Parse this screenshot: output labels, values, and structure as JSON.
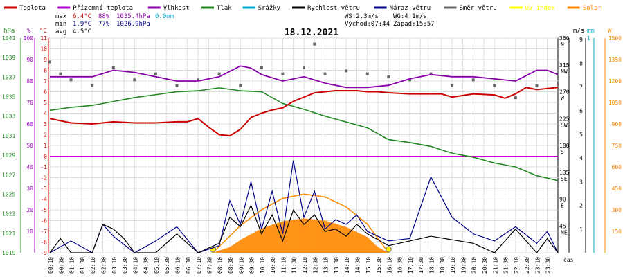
{
  "chart_data": {
    "type": "line",
    "title": "18.12.2021",
    "legend": [
      {
        "name": "Teplota",
        "color": "#cc0000"
      },
      {
        "name": "Přízemní teplota",
        "color": "#aa00cc"
      },
      {
        "name": "Vlhkost",
        "color": "#8800aa"
      },
      {
        "name": "Tlak",
        "color": "#228822"
      },
      {
        "name": "Srážky",
        "color": "#00aacc"
      },
      {
        "name": "Rychlost větru",
        "color": "#000000"
      },
      {
        "name": "Náraz větru",
        "color": "#000088"
      },
      {
        "name": "Směr větru",
        "color": "#666666"
      },
      {
        "name": "UV index",
        "color": "#ffff00"
      },
      {
        "name": "Solar",
        "color": "#ff8800"
      }
    ],
    "stats": {
      "max": {
        "label": "max",
        "temp": "6.4°C",
        "hum": "88%",
        "press": "1035.4hPa",
        "rain": "0.0mm"
      },
      "min": {
        "label": "min",
        "temp": "1.9°C",
        "hum": "77%",
        "press": "1026.9hPa"
      },
      "avg": {
        "label": "avg",
        "temp": "4.5°C"
      }
    },
    "info": {
      "ws": "WS:2.3m/s",
      "wg": "WG:4.1m/s",
      "sunrise": "Východ:07:44",
      "sunset": "Západ:15:57"
    },
    "axes": {
      "hPa": {
        "unit": "hPa",
        "ticks": [
          "1041",
          "1039",
          "1037",
          "1035",
          "1033",
          "1031",
          "1029",
          "1027",
          "1025",
          "1023",
          "1021",
          "1019"
        ]
      },
      "pct": {
        "unit": "%",
        "ticks": [
          "100",
          "90",
          "80",
          "70",
          "60",
          "50",
          "40",
          "30",
          "20",
          "10"
        ]
      },
      "degC": {
        "unit": "°C",
        "ticks": [
          "11",
          "10",
          "9",
          "8",
          "7",
          "6",
          "5",
          "4",
          "3",
          "2",
          "1",
          "0",
          "-1",
          "-2",
          "-3",
          "-4",
          "-5",
          "-6",
          "-7",
          "-8",
          "-9"
        ]
      },
      "dir": {
        "ticks": [
          {
            "deg": "360",
            "lbl": "N"
          },
          {
            "deg": "315",
            "lbl": "NW"
          },
          {
            "deg": "270",
            "lbl": "W"
          },
          {
            "deg": "225",
            "lbl": "SW"
          },
          {
            "deg": "180",
            "lbl": "S"
          },
          {
            "deg": "135",
            "lbl": "SE"
          },
          {
            "deg": "90",
            "lbl": "E"
          },
          {
            "deg": "45",
            "lbl": "NE"
          }
        ]
      },
      "ms": {
        "unit": "m/s",
        "ticks": [
          "9",
          "8",
          "7",
          "6",
          "5",
          "4",
          "3",
          "2",
          "1"
        ]
      },
      "mm": {
        "unit": "mm",
        "ticks": [
          "1"
        ]
      },
      "w": {
        "unit": "W",
        "ticks": [
          "1500",
          "1350",
          "1200",
          "1050",
          "900",
          "750",
          "600",
          "450",
          "300",
          "150"
        ]
      },
      "xunit": "čas",
      "xticks": [
        "00:10",
        "00:30",
        "01:10",
        "01:30",
        "02:10",
        "02:30",
        "03:10",
        "03:30",
        "04:10",
        "04:30",
        "05:10",
        "05:30",
        "06:10",
        "06:30",
        "07:10",
        "07:30",
        "08:10",
        "08:30",
        "09:10",
        "09:30",
        "10:10",
        "10:30",
        "11:10",
        "11:30",
        "12:10",
        "12:30",
        "13:10",
        "13:30",
        "14:10",
        "14:30",
        "15:10",
        "15:30",
        "16:10",
        "16:30",
        "17:10",
        "17:30",
        "18:10",
        "18:30",
        "19:10",
        "19:30",
        "20:10",
        "20:30",
        "21:10",
        "21:30",
        "22:10",
        "22:30",
        "23:10",
        "23:30"
      ]
    },
    "series": [
      {
        "name": "Teplota",
        "color": "#cc0000",
        "unit": "°C",
        "x": [
          0,
          1,
          2,
          3,
          4,
          5,
          6,
          6.5,
          7,
          7.5,
          8,
          8.5,
          9,
          9.5,
          10,
          10.5,
          11,
          11.5,
          12,
          12.5,
          13,
          13.5,
          14,
          14.5,
          15,
          15.5,
          16,
          17,
          18,
          18.5,
          19,
          20,
          21,
          21.5,
          22,
          22.5,
          23,
          24
        ],
        "y": [
          3.5,
          3.1,
          3.0,
          3.2,
          3.1,
          3.1,
          3.2,
          3.2,
          3.5,
          2.7,
          2.0,
          1.9,
          2.5,
          3.6,
          4.0,
          4.3,
          4.5,
          5.1,
          5.5,
          5.9,
          6.0,
          6.1,
          6.1,
          6.1,
          6.0,
          6.0,
          5.9,
          5.8,
          5.8,
          5.8,
          5.5,
          5.8,
          5.7,
          5.4,
          5.8,
          6.4,
          6.2,
          6.4
        ]
      },
      {
        "name": "Vlhkost",
        "color": "#8800aa",
        "unit": "%",
        "x": [
          0,
          2,
          3,
          4,
          5,
          6,
          7,
          8,
          9,
          9.5,
          10,
          11,
          12,
          13,
          14,
          15,
          16,
          17,
          18,
          19,
          20,
          21,
          22,
          23,
          23.5,
          24
        ],
        "y": [
          82,
          82,
          85,
          84,
          82,
          80,
          80,
          82,
          87,
          86,
          83,
          80,
          82,
          79,
          77,
          77,
          78,
          81,
          83,
          82,
          82,
          81,
          80,
          85,
          85,
          83
        ]
      },
      {
        "name": "Tlak",
        "color": "#228822",
        "unit": "hPa",
        "x": [
          0,
          1,
          2,
          3,
          4,
          5,
          6,
          7,
          8,
          9,
          10,
          11,
          12,
          13,
          14,
          15,
          16,
          17,
          18,
          19,
          20,
          21,
          22,
          23,
          24
        ],
        "y": [
          1033.6,
          1033.9,
          1034.1,
          1034.5,
          1034.9,
          1035.2,
          1035.5,
          1035.6,
          1035.9,
          1035.6,
          1035.5,
          1034.3,
          1033.7,
          1033.0,
          1032.4,
          1031.8,
          1030.6,
          1030.3,
          1029.9,
          1029.2,
          1028.8,
          1028.2,
          1027.8,
          1026.9,
          1026.4
        ]
      },
      {
        "name": "Rychlost větru",
        "color": "#000000",
        "unit": "m/s",
        "x": [
          0,
          0.5,
          1,
          2,
          2.5,
          3,
          3.5,
          4,
          5,
          6,
          7,
          8,
          8.5,
          9,
          9.5,
          10,
          10.5,
          11,
          11.5,
          12,
          12.5,
          13,
          13.5,
          14,
          14.5,
          15,
          16,
          18,
          20,
          21,
          22,
          23,
          23.5,
          24
        ],
        "y": [
          0,
          0.6,
          0,
          0,
          1.2,
          1.0,
          0.6,
          0,
          0,
          0.8,
          0,
          0.4,
          1.5,
          1.1,
          2.0,
          0.8,
          1.6,
          0.5,
          1.8,
          1.2,
          1.6,
          0.9,
          1.0,
          0.7,
          1.2,
          0.8,
          0.3,
          0.7,
          0.4,
          0,
          1.0,
          0,
          0.6,
          0
        ]
      },
      {
        "name": "Náraz větru",
        "color": "#000088",
        "unit": "m/s",
        "x": [
          0,
          1,
          2,
          2.5,
          3,
          4,
          5,
          6,
          7,
          8,
          8.5,
          9,
          9.5,
          10,
          10.5,
          11,
          11.5,
          12,
          12.5,
          13,
          13.5,
          14,
          14.5,
          15,
          16,
          17,
          18,
          19,
          20,
          21,
          22,
          23,
          23.5,
          24
        ],
        "y": [
          0,
          0.5,
          0,
          1.2,
          0.7,
          0,
          0.5,
          1.1,
          0,
          0.3,
          2.2,
          1.2,
          3.0,
          1.0,
          2.6,
          0.8,
          3.9,
          1.5,
          2.6,
          1.0,
          1.4,
          1.2,
          1.6,
          0.9,
          0.5,
          0.6,
          3.2,
          1.5,
          0.8,
          0.5,
          1.1,
          0.4,
          0.9,
          0
        ]
      },
      {
        "name": "Směr větru",
        "color": "#666666",
        "unit": "°",
        "x": [
          0,
          0.5,
          1,
          2,
          3,
          4,
          5,
          6,
          7,
          8,
          9,
          10,
          11,
          12,
          12.5,
          13,
          14,
          15,
          16,
          17,
          18,
          19,
          20,
          21,
          22,
          23,
          24
        ],
        "y": [
          320,
          300,
          290,
          280,
          310,
          290,
          300,
          280,
          290,
          300,
          280,
          310,
          300,
          310,
          350,
          300,
          305,
          300,
          295,
          290,
          300,
          280,
          290,
          280,
          260,
          280,
          285
        ]
      },
      {
        "name": "Solar",
        "color": "#ff8800",
        "unit": "W",
        "x": [
          7.7,
          8.5,
          9,
          10,
          11,
          12,
          13,
          14,
          15,
          15.5,
          16
        ],
        "y": [
          0,
          40,
          90,
          170,
          220,
          240,
          225,
          180,
          110,
          40,
          0
        ]
      }
    ],
    "sun_curve": {
      "name": "Solar max",
      "x": [
        7.7,
        9,
        10,
        11,
        12,
        13,
        14,
        15,
        16
      ],
      "y": [
        0,
        190,
        300,
        380,
        410,
        390,
        320,
        200,
        0
      ]
    }
  }
}
